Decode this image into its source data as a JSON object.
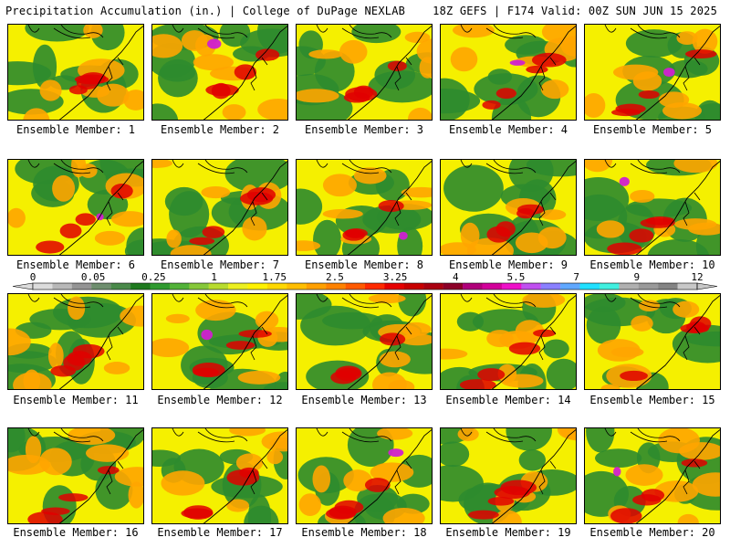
{
  "header": {
    "left": "Precipitation Accumulation (in.) | College of DuPage NEXLAB",
    "right": "18Z GEFS | F174 Valid: 00Z SUN JUN 15 2025"
  },
  "member_label_prefix": "Ensemble Member: ",
  "members": [
    1,
    2,
    3,
    4,
    5,
    6,
    7,
    8,
    9,
    10,
    11,
    12,
    13,
    14,
    15,
    16,
    17,
    18,
    19,
    20
  ],
  "colorbar": {
    "tick_labels": [
      "0",
      "0.05",
      "0.25",
      "1",
      "1.75",
      "2.5",
      "3.25",
      "4",
      "5.5",
      "7",
      "9",
      "12"
    ],
    "colors": [
      "#dcdcdc",
      "#b8b8b8",
      "#949494",
      "#6e8e6e",
      "#4a8a4a",
      "#1f7a1f",
      "#2f9a2f",
      "#52b238",
      "#86c83a",
      "#b8dc2e",
      "#ecf020",
      "#fff200",
      "#ffd800",
      "#ffbe00",
      "#ffa000",
      "#ff8200",
      "#ff5a00",
      "#ff2a00",
      "#e60000",
      "#c80000",
      "#aa0010",
      "#8c0028",
      "#b0007a",
      "#d2009a",
      "#ee10c8",
      "#c050f0",
      "#8a80ff",
      "#60a8ff",
      "#20e0ff",
      "#40f0e0",
      "#b0b0b0",
      "#9a9a9a",
      "#848484",
      "#c8c8c8"
    ]
  },
  "colors": {
    "green": "#2e8b2e",
    "yellow": "#f5f000",
    "orange": "#ffa500",
    "red": "#e00000",
    "magenta": "#d020d0",
    "coast": "#000000"
  }
}
